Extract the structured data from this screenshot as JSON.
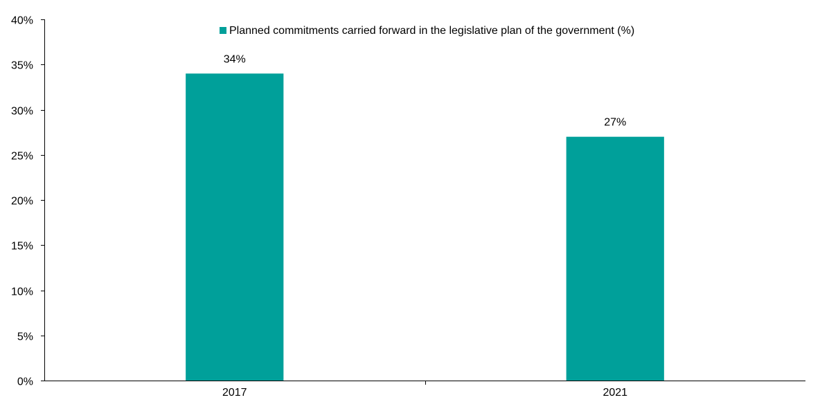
{
  "chart_data": {
    "type": "bar",
    "categories": [
      "2017",
      "2021"
    ],
    "series": [
      {
        "name": "Planned commitments carried forward in the legislative plan of the government (%)",
        "values": [
          34,
          27
        ],
        "data_labels": [
          "34%",
          "27%"
        ]
      }
    ],
    "ylim": [
      0,
      40
    ],
    "y_ticks": [
      0,
      5,
      10,
      15,
      20,
      25,
      30,
      35,
      40
    ],
    "y_tick_labels": [
      "0%",
      "5%",
      "10%",
      "15%",
      "20%",
      "25%",
      "30%",
      "35%",
      "40%"
    ],
    "title": "",
    "xlabel": "",
    "ylabel": "",
    "grid": false,
    "legend_position": "top-center",
    "colors": {
      "bar": "#00A09A",
      "axis": "#000000",
      "text": "#000000"
    }
  }
}
